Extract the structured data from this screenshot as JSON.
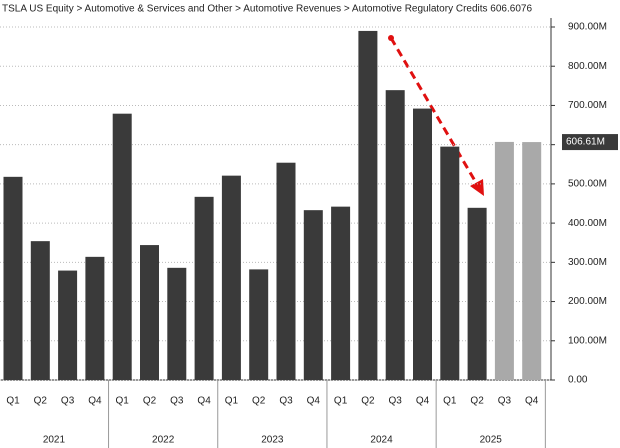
{
  "chart_data": {
    "type": "bar",
    "title": "TSLA US Equity > Automotive & Services and Other > Automotive Revenues > Automotive Regulatory Credits 606.6076",
    "categories": [
      "Q1",
      "Q2",
      "Q3",
      "Q4",
      "Q1",
      "Q2",
      "Q3",
      "Q4",
      "Q1",
      "Q2",
      "Q3",
      "Q4",
      "Q1",
      "Q2",
      "Q3",
      "Q4",
      "Q1",
      "Q2",
      "Q3",
      "Q4"
    ],
    "years": [
      "2021",
      "2022",
      "2023",
      "2024",
      "2025"
    ],
    "values": [
      518,
      354,
      279,
      314,
      679,
      344,
      286,
      467,
      521,
      282,
      554,
      433,
      442,
      890,
      739,
      692,
      595,
      439,
      607,
      606.61
    ],
    "colors": [
      "#3a3a3a",
      "#3a3a3a",
      "#3a3a3a",
      "#3a3a3a",
      "#3a3a3a",
      "#3a3a3a",
      "#3a3a3a",
      "#3a3a3a",
      "#3a3a3a",
      "#3a3a3a",
      "#3a3a3a",
      "#3a3a3a",
      "#3a3a3a",
      "#3a3a3a",
      "#3a3a3a",
      "#3a3a3a",
      "#3a3a3a",
      "#3a3a3a",
      "#a9a9a9",
      "#a9a9a9"
    ],
    "ylim": [
      0,
      900
    ],
    "yticks": [
      {
        "value": 0,
        "label": "0.00"
      },
      {
        "value": 100,
        "label": "100.00M"
      },
      {
        "value": 200,
        "label": "200.00M"
      },
      {
        "value": 300,
        "label": "300.00M"
      },
      {
        "value": 400,
        "label": "400.00M"
      },
      {
        "value": 500,
        "label": "500.00M"
      },
      {
        "value": 600,
        "label": "600.00M"
      },
      {
        "value": 700,
        "label": "700.00M"
      },
      {
        "value": 800,
        "label": "800.00M"
      },
      {
        "value": 900,
        "label": "900.00M"
      }
    ],
    "last_value": {
      "value": 606.61,
      "label": "606.61M"
    },
    "grid": true
  }
}
